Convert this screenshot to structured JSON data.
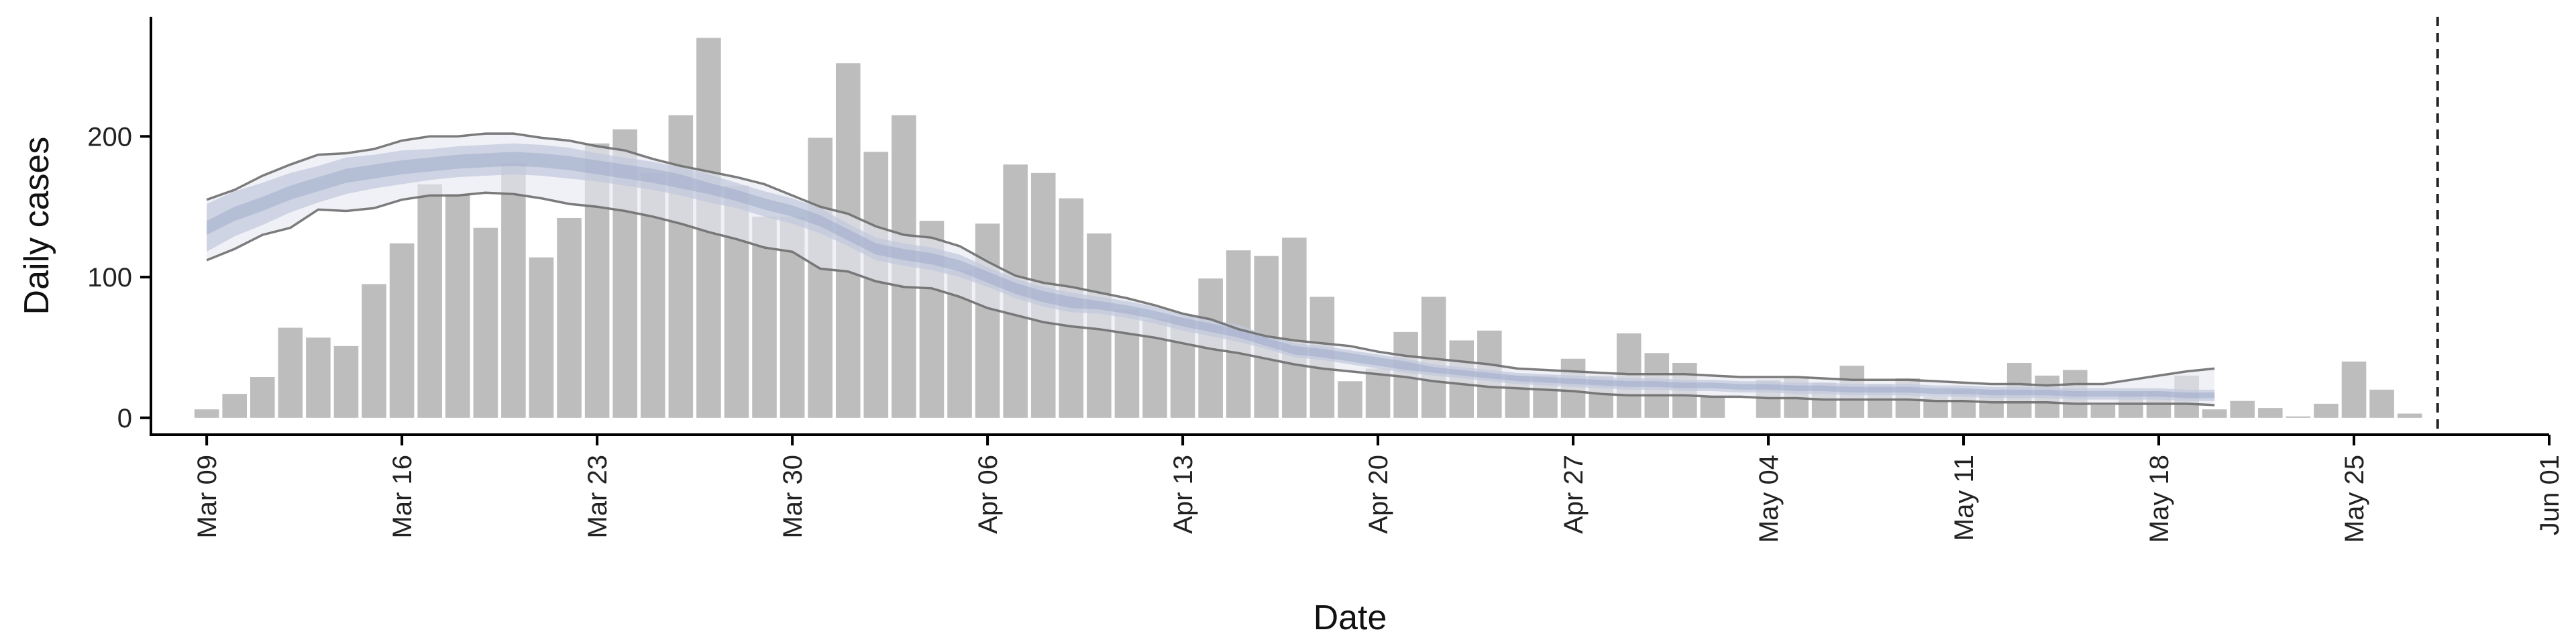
{
  "chart_data": {
    "type": "bar",
    "xlabel": "Date",
    "ylabel": "Daily cases",
    "xlim": [
      "2020-03-07",
      "2020-06-01"
    ],
    "ylim": [
      -12,
      285
    ],
    "x_ticks": [
      {
        "date": "2020-03-09",
        "label": "Mar 09"
      },
      {
        "date": "2020-03-16",
        "label": "Mar 16"
      },
      {
        "date": "2020-03-23",
        "label": "Mar 23"
      },
      {
        "date": "2020-03-30",
        "label": "Mar 30"
      },
      {
        "date": "2020-04-06",
        "label": "Apr 06"
      },
      {
        "date": "2020-04-13",
        "label": "Apr 13"
      },
      {
        "date": "2020-04-20",
        "label": "Apr 20"
      },
      {
        "date": "2020-04-27",
        "label": "Apr 27"
      },
      {
        "date": "2020-05-04",
        "label": "May 04"
      },
      {
        "date": "2020-05-11",
        "label": "May 11"
      },
      {
        "date": "2020-05-18",
        "label": "May 18"
      },
      {
        "date": "2020-05-25",
        "label": "May 25"
      },
      {
        "date": "2020-06-01",
        "label": "Jun 01"
      }
    ],
    "y_ticks": [
      0,
      100,
      200
    ],
    "vertical_line_date": "2020-05-28",
    "colors": {
      "bars": "#bdbdbd",
      "outer_band": "#e6e9f2",
      "inner_band": "#c2c9dd",
      "core_band": "#9fabc8",
      "bound_lines": "#6e6e6e",
      "vline": "#222222"
    },
    "bars": {
      "start_date": "2020-03-09",
      "values": [
        6,
        17,
        29,
        64,
        57,
        51,
        95,
        124,
        166,
        159,
        135,
        181,
        114,
        142,
        195,
        205,
        174,
        215,
        270,
        165,
        143,
        143,
        199,
        252,
        189,
        215,
        140,
        105,
        138,
        180,
        174,
        156,
        131,
        77,
        70,
        72,
        99,
        119,
        115,
        128,
        86,
        26,
        35,
        61,
        86,
        55,
        62,
        30,
        30,
        42,
        30,
        60,
        46,
        39,
        15,
        0,
        27,
        29,
        25,
        37,
        24,
        28,
        15,
        20,
        20,
        39,
        30,
        34,
        9,
        18,
        19,
        30,
        6,
        12,
        7,
        1,
        10,
        40,
        20,
        3
      ]
    },
    "band": {
      "start_date": "2020-03-09",
      "center": [
        135,
        145,
        152,
        160,
        166,
        172,
        175,
        178,
        180,
        182,
        183,
        184,
        183,
        181,
        178,
        175,
        172,
        168,
        163,
        158,
        152,
        147,
        140,
        130,
        120,
        116,
        113,
        108,
        100,
        92,
        86,
        82,
        80,
        77,
        73,
        68,
        64,
        60,
        54,
        48,
        46,
        43,
        40,
        37,
        34,
        32,
        30,
        28,
        27,
        26,
        25,
        24,
        24,
        23,
        23,
        22,
        22,
        21,
        21,
        20,
        20,
        20,
        19,
        19,
        18,
        18,
        18,
        17,
        17,
        17,
        17,
        16,
        16
      ],
      "inner_half_width": [
        17,
        16,
        15,
        14,
        13,
        13,
        12,
        12,
        11,
        11,
        11,
        11,
        11,
        11,
        10,
        10,
        10,
        10,
        10,
        9,
        9,
        9,
        9,
        8,
        8,
        8,
        8,
        8,
        7,
        7,
        7,
        7,
        6,
        6,
        6,
        6,
        6,
        6,
        5,
        5,
        5,
        5,
        5,
        5,
        4,
        4,
        4,
        4,
        4,
        4,
        4,
        4,
        4,
        4,
        4,
        4,
        4,
        4,
        4,
        4,
        4,
        4,
        4,
        4,
        4,
        4,
        4,
        4,
        4,
        4,
        4,
        4,
        4
      ],
      "core_half_width": [
        5,
        5,
        5,
        5,
        5,
        5,
        5,
        5,
        5,
        5,
        5,
        5,
        5,
        5,
        5,
        5,
        5,
        5,
        4,
        4,
        4,
        4,
        4,
        4,
        4,
        4,
        4,
        4,
        4,
        4,
        4,
        4,
        3,
        3,
        3,
        3,
        3,
        3,
        3,
        3,
        3,
        3,
        3,
        3,
        2,
        2,
        2,
        2,
        2,
        2,
        2,
        2,
        2,
        2,
        2,
        2,
        2,
        2,
        2,
        2,
        2,
        2,
        2,
        2,
        2,
        2,
        2,
        2,
        2,
        2,
        2,
        2,
        2
      ],
      "upper": [
        155,
        162,
        172,
        180,
        187,
        188,
        191,
        197,
        200,
        200,
        202,
        202,
        199,
        197,
        193,
        190,
        184,
        179,
        175,
        171,
        166,
        158,
        150,
        145,
        136,
        130,
        128,
        122,
        111,
        101,
        96,
        93,
        89,
        85,
        80,
        74,
        70,
        63,
        58,
        55,
        53,
        51,
        47,
        44,
        42,
        40,
        38,
        35,
        34,
        33,
        32,
        31,
        31,
        31,
        30,
        29,
        29,
        29,
        28,
        27,
        27,
        27,
        26,
        25,
        24,
        24,
        23,
        24,
        24,
        27,
        30,
        33,
        35
      ],
      "lower": [
        112,
        120,
        130,
        135,
        148,
        147,
        149,
        155,
        158,
        158,
        160,
        159,
        156,
        152,
        150,
        147,
        143,
        138,
        132,
        127,
        121,
        118,
        106,
        104,
        97,
        93,
        92,
        86,
        78,
        73,
        68,
        65,
        63,
        60,
        57,
        53,
        49,
        46,
        42,
        38,
        35,
        33,
        31,
        29,
        26,
        24,
        22,
        21,
        20,
        19,
        17,
        16,
        16,
        16,
        15,
        15,
        14,
        14,
        13,
        13,
        13,
        13,
        12,
        12,
        11,
        11,
        11,
        10,
        10,
        10,
        10,
        10,
        9
      ]
    }
  }
}
